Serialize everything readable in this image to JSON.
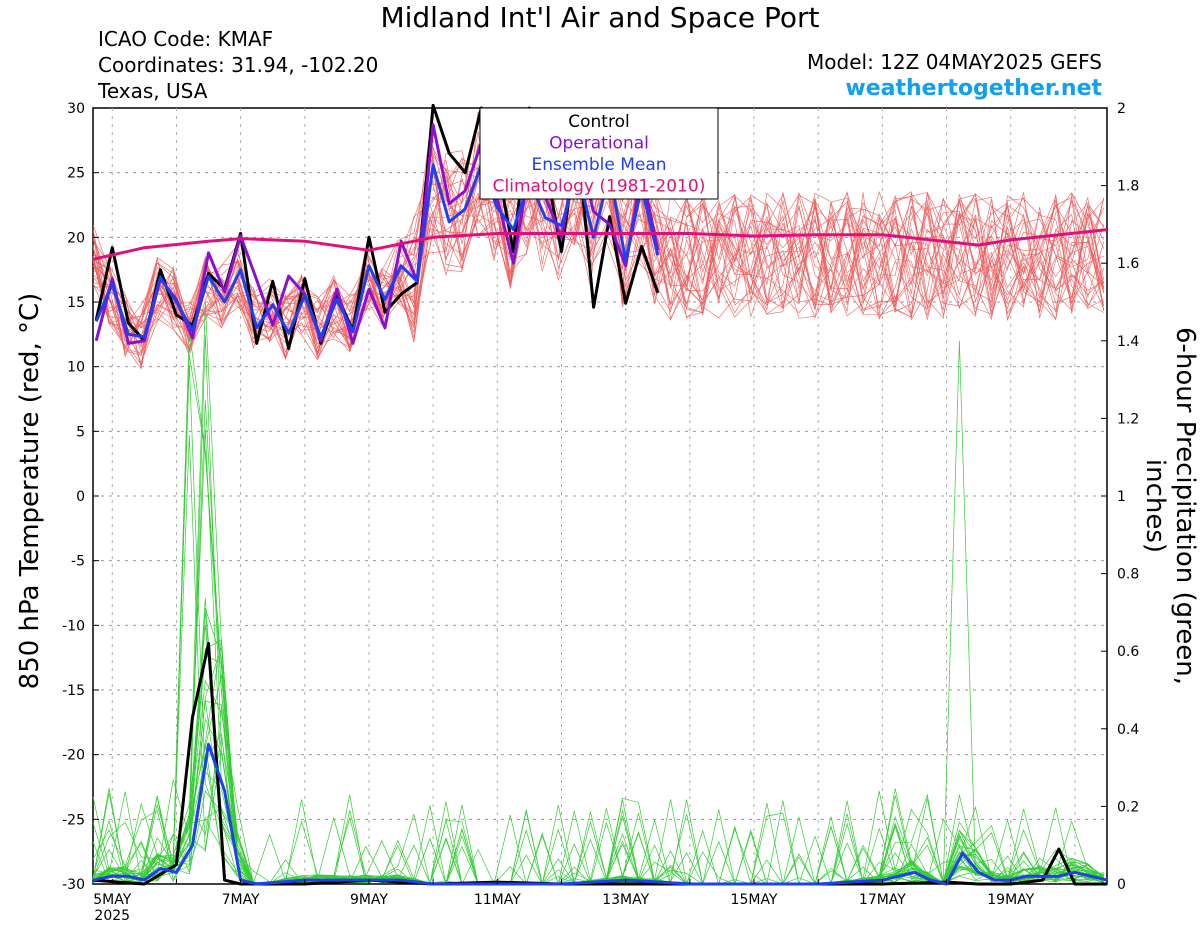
{
  "header": {
    "title": "Midland Int'l Air and Space Port",
    "icao": "ICAO Code: KMAF",
    "coords": "Coordinates: 31.94, -102.20",
    "region": "Texas, USA",
    "model": "Model: 12Z 04MAY2025 GEFS",
    "brand": "weathertogether.net"
  },
  "chart_data": {
    "type": "line",
    "ylabel_left": "850 hPa Temperature (red, °C)",
    "ylabel_right": "6-hour Precipitation (green, inches)",
    "ylim_left": [
      -30,
      30
    ],
    "ylim_right": [
      0,
      2
    ],
    "yticks_left": [
      "30",
      "25",
      "20",
      "15",
      "10",
      "5",
      "0",
      "-5",
      "-10",
      "-15",
      "-20",
      "-25",
      "-30"
    ],
    "yticks_right": [
      "2",
      "1.8",
      "1.6",
      "1.4",
      "1.2",
      "1",
      "0.8",
      "0.6",
      "0.4",
      "0.2",
      "0"
    ],
    "xlim_days": [
      4.7,
      20.5
    ],
    "xticks": [
      {
        "day": 5,
        "label": "5MAY",
        "year": "2025"
      },
      {
        "day": 7,
        "label": "7MAY"
      },
      {
        "day": 9,
        "label": "9MAY"
      },
      {
        "day": 11,
        "label": "11MAY"
      },
      {
        "day": 13,
        "label": "13MAY"
      },
      {
        "day": 15,
        "label": "15MAY"
      },
      {
        "day": 17,
        "label": "17MAY"
      },
      {
        "day": 19,
        "label": "19MAY"
      }
    ],
    "grid": "dashed",
    "legend_placement": "top-center",
    "legend": [
      {
        "label": "Control",
        "color": "#000000"
      },
      {
        "label": "Operational",
        "color": "#8a10d0"
      },
      {
        "label": "Ensemble Mean",
        "color": "#2040f0"
      },
      {
        "label": "Climatology (1981-2010)",
        "color": "#e0107a"
      }
    ],
    "colors": {
      "members_temp": "#ee5a5a",
      "members_precip": "#33cc33",
      "control": "#000000",
      "operational": "#8a10d0",
      "mean": "#2040f0",
      "climatology": "#e0107a"
    },
    "series": [
      {
        "name": "Control",
        "axis": "left",
        "color": "#000000",
        "points": [
          [
            4.75,
            13.6
          ],
          [
            5.0,
            19.2
          ],
          [
            5.25,
            13.4
          ],
          [
            5.5,
            12.0
          ],
          [
            5.75,
            17.5
          ],
          [
            6.0,
            14.0
          ],
          [
            6.25,
            13.2
          ],
          [
            6.5,
            17.2
          ],
          [
            6.75,
            16.0
          ],
          [
            7.0,
            20.3
          ],
          [
            7.25,
            11.8
          ],
          [
            7.5,
            16.6
          ],
          [
            7.75,
            11.4
          ],
          [
            8.0,
            16.8
          ],
          [
            8.25,
            11.8
          ],
          [
            8.5,
            15.5
          ],
          [
            8.75,
            12.8
          ],
          [
            9.0,
            20.0
          ],
          [
            9.25,
            14.2
          ],
          [
            9.5,
            15.6
          ],
          [
            9.75,
            16.5
          ],
          [
            10.0,
            30.2
          ],
          [
            10.25,
            26.5
          ],
          [
            10.5,
            25.0
          ],
          [
            10.75,
            30.0
          ],
          [
            11.0,
            25.6
          ],
          [
            11.25,
            18.9
          ],
          [
            11.5,
            30.0
          ],
          [
            11.75,
            25.6
          ],
          [
            12.0,
            18.9
          ],
          [
            12.25,
            27.6
          ],
          [
            12.5,
            14.6
          ],
          [
            12.75,
            21.6
          ],
          [
            13.0,
            14.9
          ],
          [
            13.25,
            19.3
          ],
          [
            13.5,
            15.7
          ]
        ]
      },
      {
        "name": "Operational",
        "axis": "left",
        "color": "#8a10d0",
        "points": [
          [
            4.75,
            12.0
          ],
          [
            5.0,
            16.8
          ],
          [
            5.25,
            11.8
          ],
          [
            5.5,
            12.0
          ],
          [
            5.75,
            16.8
          ],
          [
            6.0,
            15.2
          ],
          [
            6.25,
            12.2
          ],
          [
            6.5,
            18.8
          ],
          [
            6.75,
            15.8
          ],
          [
            7.0,
            20.1
          ],
          [
            7.25,
            16.7
          ],
          [
            7.5,
            13.2
          ],
          [
            7.75,
            17.0
          ],
          [
            8.0,
            15.6
          ],
          [
            8.25,
            12.0
          ],
          [
            8.5,
            16.0
          ],
          [
            8.75,
            11.8
          ],
          [
            9.0,
            16.0
          ],
          [
            9.25,
            13.0
          ],
          [
            9.5,
            19.7
          ],
          [
            9.75,
            16.6
          ],
          [
            10.0,
            28.7
          ],
          [
            10.25,
            22.6
          ],
          [
            10.5,
            23.6
          ],
          [
            10.75,
            27.3
          ],
          [
            11.0,
            23.0
          ],
          [
            11.25,
            18.0
          ],
          [
            11.5,
            25.3
          ],
          [
            11.75,
            23.1
          ],
          [
            12.0,
            20.0
          ],
          [
            12.25,
            26.9
          ],
          [
            12.5,
            22.0
          ],
          [
            12.75,
            21.0
          ],
          [
            13.0,
            17.8
          ],
          [
            13.25,
            25.1
          ],
          [
            13.5,
            19.0
          ]
        ]
      },
      {
        "name": "Ensemble Mean",
        "axis": "left",
        "color": "#2040f0",
        "points": [
          [
            4.75,
            13.5
          ],
          [
            5.0,
            16.4
          ],
          [
            5.25,
            12.5
          ],
          [
            5.5,
            12.3
          ],
          [
            5.75,
            16.9
          ],
          [
            6.0,
            15.0
          ],
          [
            6.25,
            12.8
          ],
          [
            6.5,
            17.0
          ],
          [
            6.75,
            15.0
          ],
          [
            7.0,
            17.5
          ],
          [
            7.25,
            13.0
          ],
          [
            7.5,
            14.8
          ],
          [
            7.75,
            12.6
          ],
          [
            8.0,
            15.5
          ],
          [
            8.25,
            12.3
          ],
          [
            8.5,
            15.2
          ],
          [
            8.75,
            12.7
          ],
          [
            9.0,
            17.8
          ],
          [
            9.25,
            15.2
          ],
          [
            9.5,
            17.8
          ],
          [
            9.75,
            16.6
          ],
          [
            10.0,
            25.6
          ],
          [
            10.25,
            21.2
          ],
          [
            10.5,
            22.2
          ],
          [
            10.75,
            25.6
          ],
          [
            11.0,
            22.3
          ],
          [
            11.25,
            20.6
          ],
          [
            11.5,
            24.4
          ],
          [
            11.75,
            21.5
          ],
          [
            12.0,
            20.9
          ],
          [
            12.25,
            25.1
          ],
          [
            12.5,
            20.0
          ],
          [
            12.75,
            25.0
          ],
          [
            13.0,
            18.2
          ],
          [
            13.25,
            23.9
          ],
          [
            13.5,
            18.6
          ]
        ]
      },
      {
        "name": "Climatology (1981-2010)",
        "axis": "left",
        "color": "#e0107a",
        "points": [
          [
            4.7,
            18.3
          ],
          [
            5.5,
            19.2
          ],
          [
            6.5,
            19.7
          ],
          [
            7.0,
            19.9
          ],
          [
            8.0,
            19.7
          ],
          [
            9.0,
            19.0
          ],
          [
            10.0,
            20.0
          ],
          [
            11.0,
            20.3
          ],
          [
            12.0,
            20.3
          ],
          [
            13.0,
            20.3
          ],
          [
            14.0,
            20.3
          ],
          [
            15.0,
            20.1
          ],
          [
            16.0,
            20.2
          ],
          [
            17.0,
            20.2
          ],
          [
            18.5,
            19.4
          ],
          [
            19.0,
            19.8
          ],
          [
            20.5,
            20.6
          ]
        ]
      },
      {
        "name": "Control precip",
        "axis": "right",
        "color": "#000000",
        "points": [
          [
            4.7,
            0.01
          ],
          [
            5.5,
            0.0
          ],
          [
            6.0,
            0.05
          ],
          [
            6.25,
            0.43
          ],
          [
            6.5,
            0.62
          ],
          [
            6.75,
            0.01
          ],
          [
            7.0,
            0.0
          ],
          [
            8.0,
            0.0
          ],
          [
            9.0,
            0.01
          ],
          [
            10.0,
            0.0
          ],
          [
            11.0,
            0.005
          ],
          [
            12.0,
            0.0
          ],
          [
            13.0,
            0.0
          ],
          [
            14.0,
            0.0
          ],
          [
            15.0,
            0.0
          ],
          [
            16.0,
            0.0
          ],
          [
            17.0,
            0.0
          ],
          [
            18.0,
            0.005
          ],
          [
            18.5,
            0.0
          ],
          [
            19.0,
            0.0
          ],
          [
            19.5,
            0.01
          ],
          [
            19.75,
            0.09
          ],
          [
            20.0,
            0.0
          ],
          [
            20.5,
            0.0
          ]
        ]
      },
      {
        "name": "Ensemble mean precip",
        "axis": "right",
        "color": "#2040f0",
        "points": [
          [
            4.7,
            0.01
          ],
          [
            5.0,
            0.02
          ],
          [
            5.25,
            0.02
          ],
          [
            5.5,
            0.01
          ],
          [
            5.75,
            0.04
          ],
          [
            6.0,
            0.03
          ],
          [
            6.25,
            0.1
          ],
          [
            6.5,
            0.36
          ],
          [
            6.75,
            0.24
          ],
          [
            7.0,
            0.01
          ],
          [
            7.25,
            0.0
          ],
          [
            8.0,
            0.01
          ],
          [
            9.0,
            0.01
          ],
          [
            9.5,
            0.01
          ],
          [
            10.0,
            0.0
          ],
          [
            11.0,
            0.0
          ],
          [
            12.0,
            0.0
          ],
          [
            13.0,
            0.01
          ],
          [
            14.0,
            0.0
          ],
          [
            15.0,
            0.0
          ],
          [
            16.0,
            0.0
          ],
          [
            17.0,
            0.01
          ],
          [
            17.5,
            0.03
          ],
          [
            17.75,
            0.01
          ],
          [
            18.0,
            0.0
          ],
          [
            18.25,
            0.08
          ],
          [
            18.5,
            0.03
          ],
          [
            18.75,
            0.01
          ],
          [
            19.0,
            0.01
          ],
          [
            19.25,
            0.02
          ],
          [
            19.5,
            0.02
          ],
          [
            19.75,
            0.02
          ],
          [
            20.0,
            0.03
          ],
          [
            20.5,
            0.01
          ]
        ]
      }
    ]
  }
}
